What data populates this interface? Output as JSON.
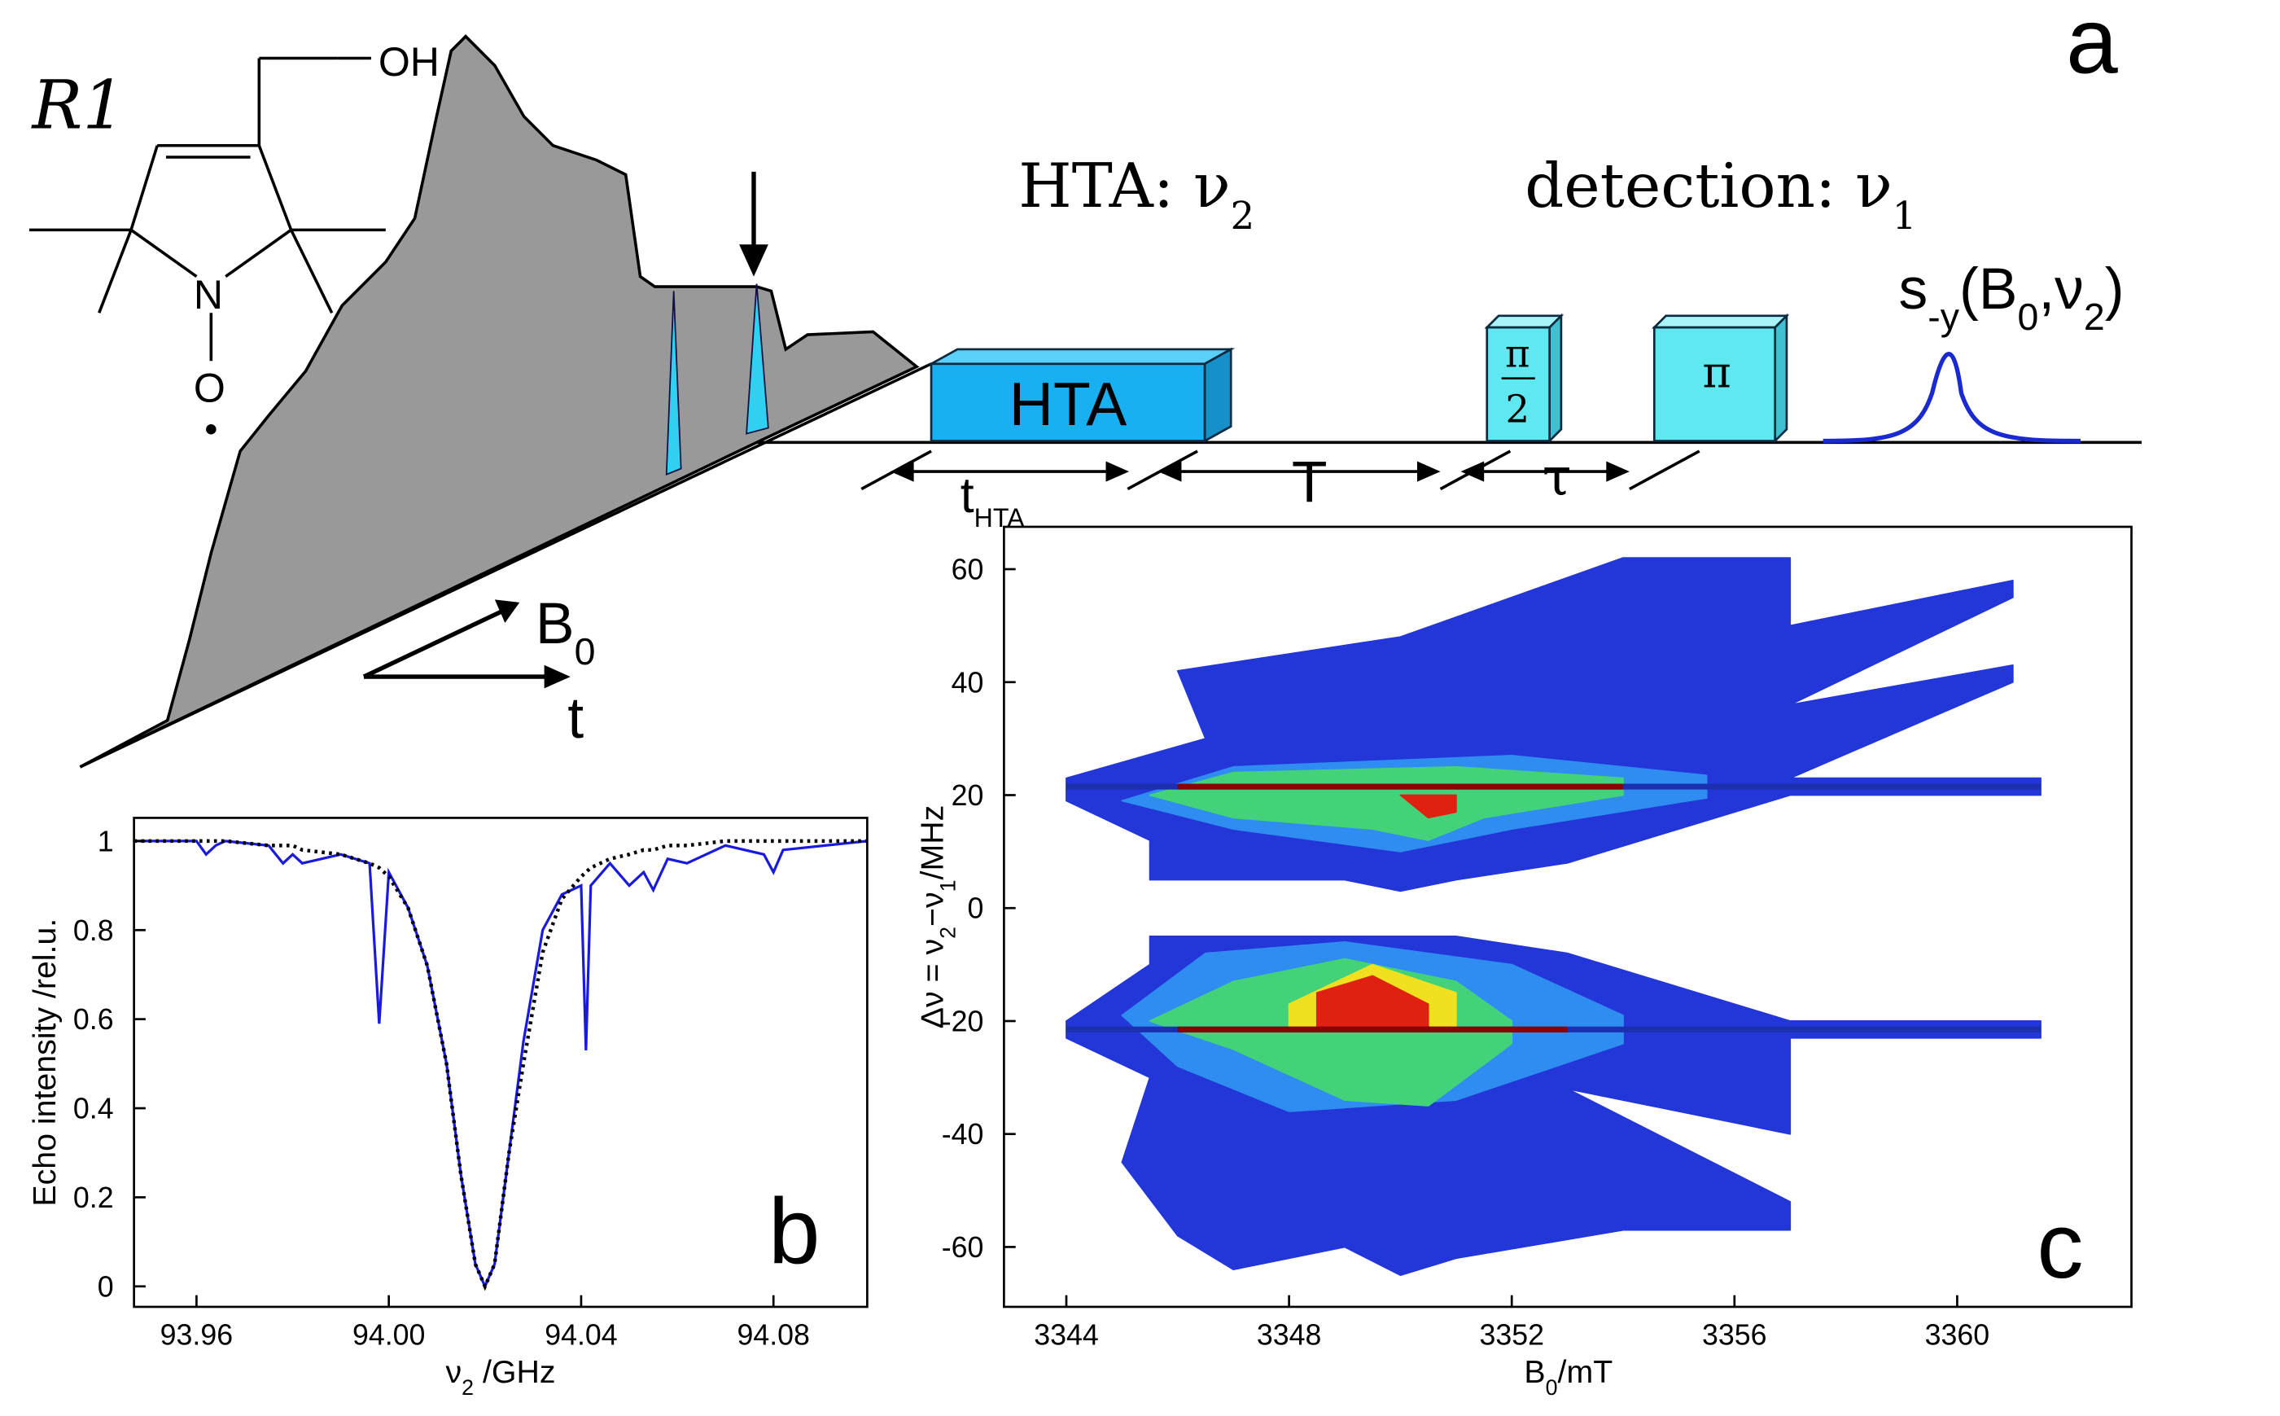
{
  "panel_a": {
    "label": "a",
    "molecule": {
      "name": "R1",
      "oh": "OH",
      "n": "N",
      "o": "O"
    },
    "hta_title": {
      "text": "HTA: ν",
      "sub": "2"
    },
    "detection": {
      "text": "detection: ν",
      "sub": "1"
    },
    "signal": {
      "s": "s",
      "sub": "-y",
      "open": "(B",
      "sub0": "0",
      "mid": ",ν",
      "sub2": "2",
      "close": ")"
    },
    "pulses": {
      "hta": "HTA",
      "pi_half_num": "π",
      "pi_half_den": "2",
      "pi": "π"
    },
    "delays": {
      "t": "t",
      "t_sub": "HTA",
      "T": "T",
      "tau": "τ"
    },
    "axes": {
      "b": "B",
      "b_sub": "0",
      "t": "t"
    }
  },
  "chart_data": [
    {
      "type": "line",
      "label": "b",
      "x_label": {
        "main": "ν",
        "sub": "2",
        "unit": " /GHz"
      },
      "y_label": "Echo intensity /rel.u.",
      "x": [
        93.947,
        93.96,
        93.962,
        93.964,
        93.966,
        93.975,
        93.978,
        93.98,
        93.982,
        93.99,
        93.996,
        93.998,
        94.0,
        94.004,
        94.008,
        94.012,
        94.015,
        94.018,
        94.02,
        94.022,
        94.025,
        94.028,
        94.032,
        94.036,
        94.04,
        94.041,
        94.042,
        94.046,
        94.05,
        94.053,
        94.055,
        94.058,
        94.062,
        94.07,
        94.078,
        94.08,
        94.082,
        94.0995
      ],
      "series": [
        {
          "color": "#1a1adf",
          "values": [
            1,
            1,
            0.97,
            0.99,
            1,
            0.99,
            0.95,
            0.97,
            0.95,
            0.97,
            0.95,
            0.59,
            0.93,
            0.85,
            0.72,
            0.5,
            0.25,
            0.05,
            0,
            0.05,
            0.3,
            0.55,
            0.8,
            0.88,
            0.9,
            0.53,
            0.9,
            0.95,
            0.9,
            0.93,
            0.89,
            0.96,
            0.95,
            0.99,
            0.97,
            0.93,
            0.98,
            1
          ]
        },
        {
          "color": "#000000",
          "dash": "dotted",
          "values": [
            1,
            1,
            1,
            1,
            1,
            0.99,
            0.99,
            0.99,
            0.98,
            0.97,
            0.95,
            0.94,
            0.92,
            0.85,
            0.72,
            0.5,
            0.25,
            0.05,
            0,
            0.05,
            0.3,
            0.5,
            0.75,
            0.87,
            0.92,
            0.93,
            0.94,
            0.96,
            0.97,
            0.98,
            0.98,
            0.99,
            0.99,
            1,
            1,
            1,
            1,
            1
          ]
        }
      ],
      "xlim": [
        93.947,
        94.0995
      ],
      "ylim": [
        -0.046,
        1.052
      ],
      "xticks": [
        93.96,
        {
          "value": 94,
          "label": "94.00"
        },
        94.04,
        94.08
      ],
      "yticks": [
        0,
        0.2,
        0.4,
        0.6,
        0.8,
        1
      ]
    },
    {
      "type": "contour",
      "label": "c",
      "x_label": {
        "main": "B",
        "sub": "0",
        "unit": "/mT"
      },
      "y_label": {
        "a": "Δν = ν",
        "sub1": "2",
        "b": "−ν",
        "sub2": "1",
        "unit": "/MHz"
      },
      "xlim": [
        3342.88,
        3363.13
      ],
      "ylim": [
        -70.6,
        67.5
      ],
      "xticks": [
        3344,
        3348,
        3352,
        3356,
        3360
      ],
      "yticks": [
        -60,
        -40,
        -20,
        0,
        20,
        40,
        60
      ],
      "regions": [
        {
          "color": "#2336d8",
          "x": [
            3344,
            3345.5,
            3345.5,
            3349,
            3350,
            3351,
            3353,
            3355,
            3357,
            3361.5,
            3361.5,
            3357,
            3361,
            3361,
            3357,
            3361,
            3361,
            3357,
            3357,
            3354,
            3350,
            3346,
            3346.5,
            3344
          ],
          "y": [
            19,
            12,
            5,
            5,
            3,
            5,
            8,
            14,
            20,
            20,
            23,
            23,
            40,
            43,
            36,
            55,
            58,
            50,
            62,
            62,
            48,
            42,
            30,
            23
          ]
        },
        {
          "color": "#2336d8",
          "x": [
            3344,
            3345.5,
            3345.5,
            3351,
            3353,
            3355,
            3357,
            3361.5,
            3361.5,
            3357,
            3357,
            3353,
            3357,
            3357,
            3354,
            3351,
            3350,
            3349,
            3347,
            3346,
            3345,
            3345.5,
            3344
          ],
          "y": [
            -20,
            -10,
            -5,
            -5,
            -8,
            -14,
            -20,
            -20,
            -23,
            -23,
            -40,
            -32,
            -52,
            -57,
            -57,
            -62,
            -65,
            -60,
            -64,
            -58,
            -45,
            -30,
            -23
          ]
        },
        {
          "color": "#2f8cf0",
          "x": [
            3345,
            3347,
            3350,
            3352,
            3355.5,
            3355.5,
            3352,
            3347
          ],
          "y": [
            19,
            14,
            10,
            14,
            19.5,
            23.5,
            27,
            25
          ]
        },
        {
          "color": "#2f8cf0",
          "x": [
            3345,
            3346.5,
            3349,
            3352,
            3354,
            3354,
            3351,
            3348,
            3346
          ],
          "y": [
            -19,
            -8,
            -6,
            -10,
            -19,
            -24,
            -34,
            -36,
            -28
          ]
        },
        {
          "color": "#43d27a",
          "x": [
            3345.5,
            3347,
            3349.5,
            3350.5,
            3351.5,
            3354,
            3354,
            3351,
            3347
          ],
          "y": [
            20,
            16,
            14,
            12,
            16,
            20,
            23,
            25,
            24
          ]
        },
        {
          "color": "#43d27a",
          "x": [
            3345.5,
            3347,
            3349,
            3351,
            3352,
            3352,
            3350.5,
            3349,
            3347
          ],
          "y": [
            -20,
            -13,
            -9,
            -13,
            -20,
            -24,
            -35,
            -34,
            -25
          ]
        },
        {
          "color": "#f0e020",
          "x": [
            3348,
            3349.5,
            3351,
            3351,
            3348
          ],
          "y": [
            -17,
            -10,
            -15,
            -21,
            -21
          ]
        },
        {
          "color": "#e02010",
          "x": [
            3348.5,
            3349.5,
            3350.5,
            3350.5,
            3348.5
          ],
          "y": [
            -15,
            -12,
            -17,
            -21,
            -21
          ]
        },
        {
          "color": "#e02010",
          "x": [
            3350,
            3350.5,
            3351,
            3351,
            3350
          ],
          "y": [
            20,
            16,
            17,
            20,
            20
          ]
        }
      ],
      "ridges": [
        {
          "color": "#1b2fb0",
          "x": [
            3344,
            3361.5
          ],
          "y": [
            21.5,
            21.5
          ]
        },
        {
          "color": "#1b2fb0",
          "x": [
            3344,
            3361.5
          ],
          "y": [
            -21.5,
            -21.5
          ]
        },
        {
          "color": "#8b0000",
          "x": [
            3346,
            3354
          ],
          "y": [
            21.5,
            21.5
          ]
        },
        {
          "color": "#8b0000",
          "x": [
            3346,
            3353
          ],
          "y": [
            -21.5,
            -21.5
          ]
        }
      ]
    }
  ]
}
